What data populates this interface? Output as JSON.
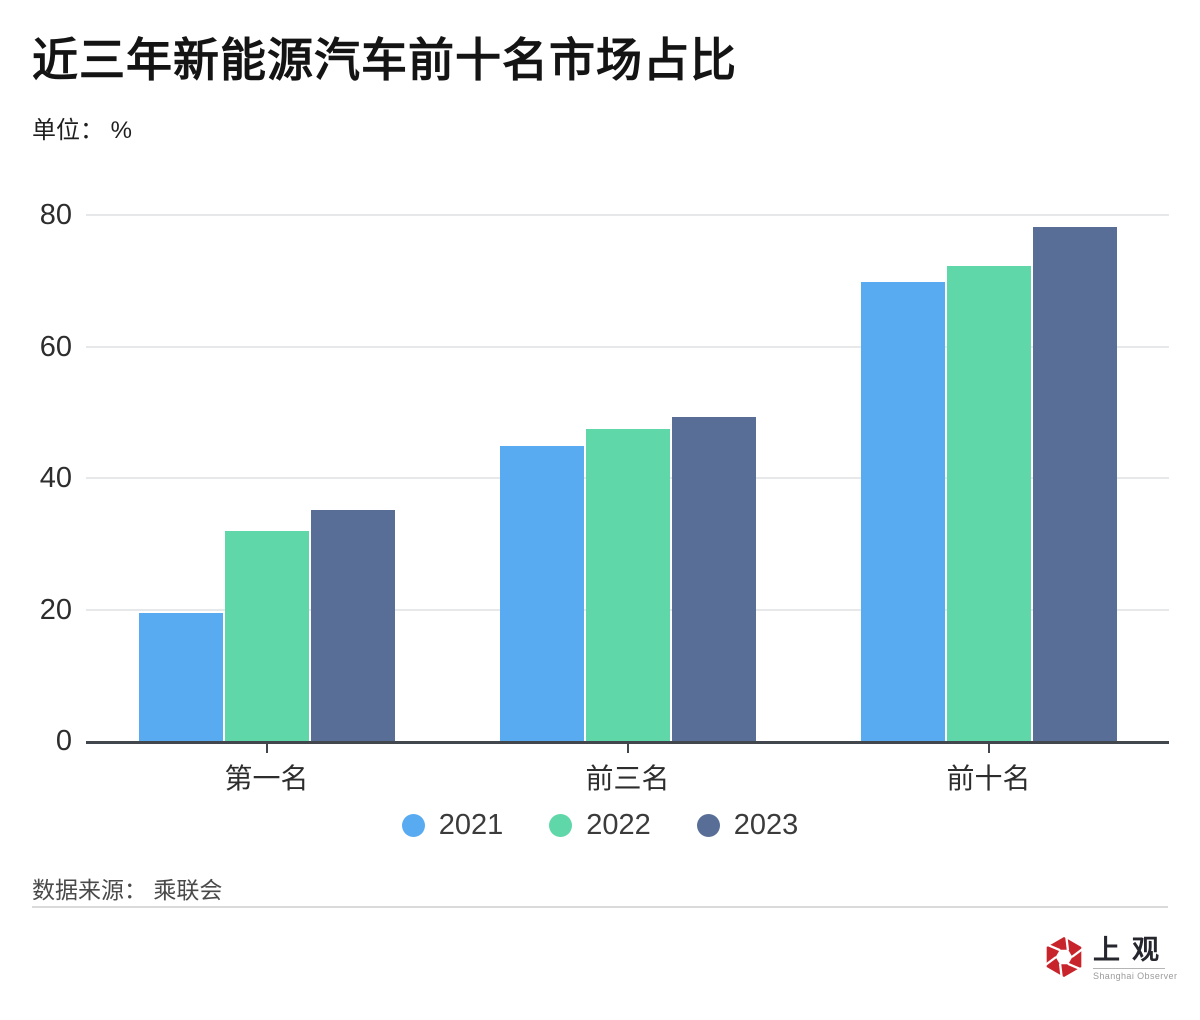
{
  "header": {
    "title": "近三年新能源汽车前十名市场占比",
    "unit_label": "单位： %"
  },
  "chart_data": {
    "type": "bar",
    "title": "近三年新能源汽车前十名市场占比",
    "ylabel": "单位： %",
    "categories": [
      "第一名",
      "前三名",
      "前十名"
    ],
    "series": [
      {
        "name": "2021",
        "color": "#58ABF1",
        "values": [
          19.5,
          44.8,
          69.8
        ]
      },
      {
        "name": "2022",
        "color": "#5FD7A9",
        "values": [
          31.9,
          47.4,
          72.3
        ]
      },
      {
        "name": "2023",
        "color": "#596E96",
        "values": [
          35.1,
          49.3,
          78.2
        ]
      }
    ],
    "ylim": [
      0,
      80
    ],
    "y_ticks": [
      0,
      20,
      40,
      60,
      80
    ],
    "grid": true,
    "legend_position": "bottom"
  },
  "footer": {
    "source": "数据来源： 乘联会"
  },
  "logo": {
    "cn": "上观",
    "en": "Shanghai Observer",
    "red": "#C8242C"
  }
}
